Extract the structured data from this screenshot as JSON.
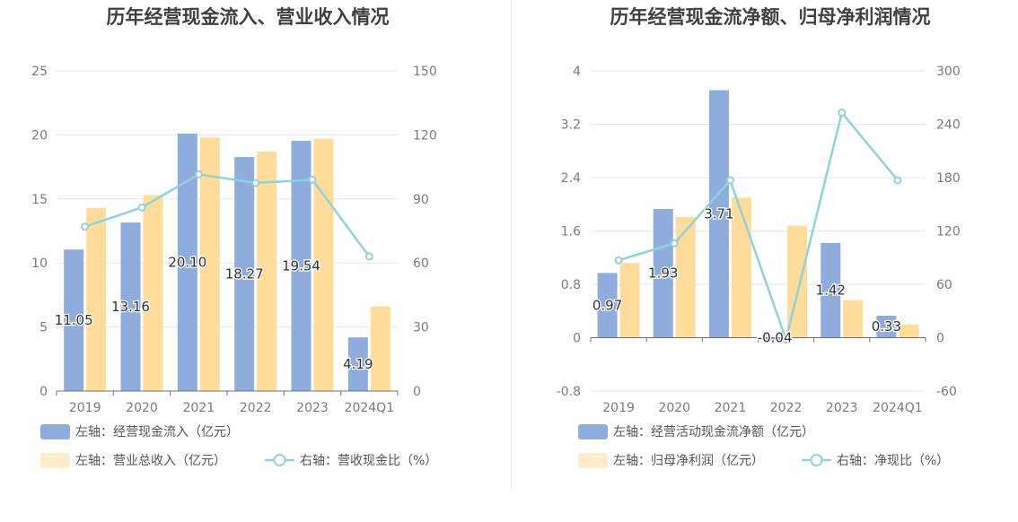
{
  "chart_data": [
    {
      "type": "bar",
      "title": "历年经营现金流入、营业收入情况",
      "categories": [
        "2019",
        "2020",
        "2021",
        "2022",
        "2023",
        "2024Q1"
      ],
      "left_axis": {
        "ticks": [
          "0",
          "5",
          "10",
          "15",
          "20",
          "25"
        ],
        "min": 0,
        "max": 25
      },
      "right_axis": {
        "ticks": [
          "0",
          "30",
          "60",
          "90",
          "120",
          "150"
        ],
        "min": 0,
        "max": 150
      },
      "series": [
        {
          "name": "左轴：经营现金流入（亿元）",
          "axis": "left",
          "kind": "bar",
          "color": "#8eacdc",
          "values": [
            11.05,
            13.16,
            20.1,
            18.27,
            19.54,
            4.19
          ],
          "labels": [
            "11.05",
            "13.16",
            "20.10",
            "18.27",
            "19.54",
            "4.19"
          ]
        },
        {
          "name": "左轴：营业总收入（亿元）",
          "axis": "left",
          "kind": "bar",
          "color": "#ffdc9a",
          "values": [
            14.3,
            15.3,
            19.8,
            18.7,
            19.7,
            6.6
          ]
        },
        {
          "name": "右轴：营收现金比（%）",
          "axis": "right",
          "kind": "line",
          "color": "#8fd3d8",
          "values": [
            77,
            86,
            101.5,
            97.5,
            99,
            63
          ]
        }
      ],
      "legend_position": "bottom-left",
      "grid": true
    },
    {
      "type": "bar",
      "title": "历年经营现金流净额、归母净利润情况",
      "categories": [
        "2019",
        "2020",
        "2021",
        "2022",
        "2023",
        "2024Q1"
      ],
      "left_axis": {
        "ticks": [
          "-0.8",
          "0",
          "0.8",
          "1.6",
          "2.4",
          "3.2",
          "4"
        ],
        "min": -0.8,
        "max": 4
      },
      "right_axis": {
        "ticks": [
          "-60",
          "0",
          "60",
          "120",
          "180",
          "240",
          "300"
        ],
        "min": -60,
        "max": 300
      },
      "series": [
        {
          "name": "左轴：经营活动现金流净额（亿元）",
          "axis": "left",
          "kind": "bar",
          "color": "#8eacdc",
          "values": [
            0.97,
            1.93,
            3.71,
            -0.04,
            1.42,
            0.33
          ],
          "labels": [
            "0.97",
            "1.93",
            "3.71",
            "-0.04",
            "1.42",
            "0.33"
          ]
        },
        {
          "name": "左轴：归母净利润（亿元）",
          "axis": "left",
          "kind": "bar",
          "color": "#ffdc9a",
          "values": [
            1.12,
            1.81,
            2.1,
            1.68,
            0.56,
            0.2
          ]
        },
        {
          "name": "右轴：净现比（%）",
          "axis": "right",
          "kind": "line",
          "color": "#8fd3d8",
          "values": [
            87,
            106,
            177,
            -2,
            253,
            177
          ]
        }
      ],
      "legend_position": "bottom-left",
      "grid": true
    }
  ]
}
